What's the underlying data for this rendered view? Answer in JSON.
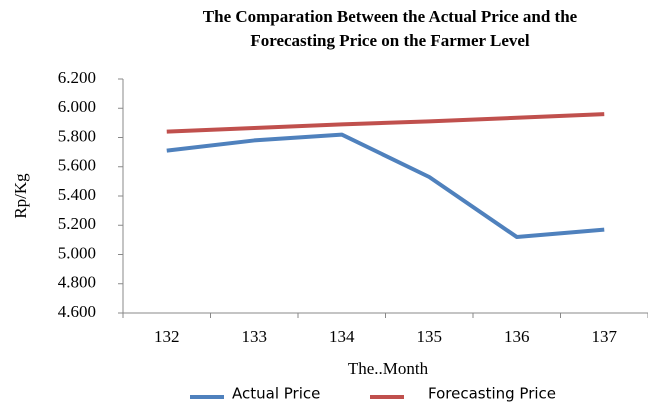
{
  "chart_data": {
    "type": "line",
    "title": [
      "The Comparation Between the Actual Price and the",
      "Forecasting Price on the Farmer Level"
    ],
    "x_label": "The..Month",
    "y_label": "Rp/Kg",
    "categories": [
      "132",
      "133",
      "134",
      "135",
      "136",
      "137"
    ],
    "series": [
      {
        "name": "Actual Price",
        "color": "#4f81bd",
        "values": [
          5710,
          5780,
          5820,
          5530,
          5120,
          5170
        ]
      },
      {
        "name": "Forecasting Price",
        "color": "#c0504d",
        "values": [
          5840,
          5865,
          5890,
          5910,
          5935,
          5960
        ]
      }
    ],
    "ylim": [
      4600,
      6200
    ],
    "yticks": [
      {
        "value": 4600,
        "label": "4.600"
      },
      {
        "value": 4800,
        "label": "4.800"
      },
      {
        "value": 5000,
        "label": "5.000"
      },
      {
        "value": 5200,
        "label": "5.200"
      },
      {
        "value": 5400,
        "label": "5.400"
      },
      {
        "value": 5600,
        "label": "5.600"
      },
      {
        "value": 5800,
        "label": "5.800"
      },
      {
        "value": 6000,
        "label": "6.000"
      },
      {
        "value": 6200,
        "label": "6.200"
      }
    ],
    "grid": false,
    "legend": "bottom"
  }
}
